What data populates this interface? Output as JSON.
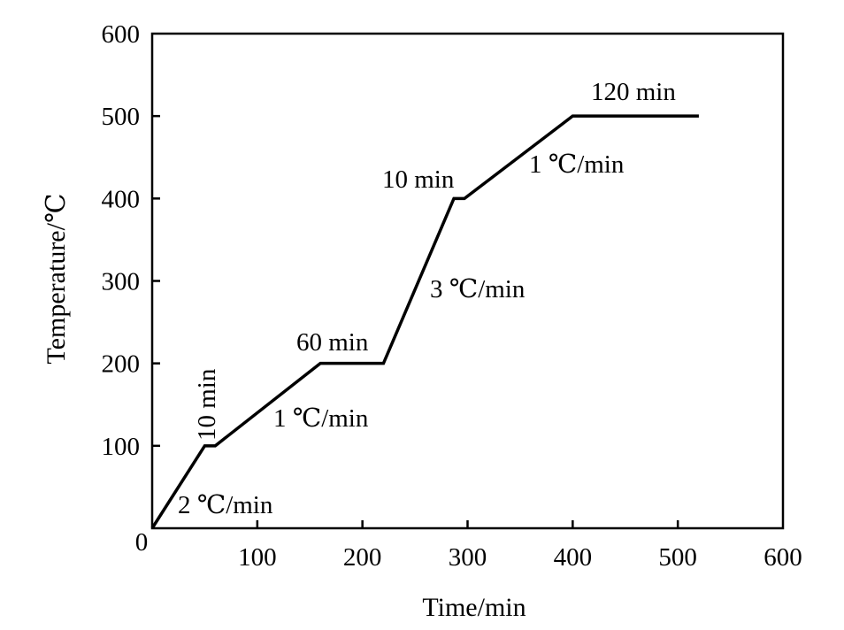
{
  "chart_data": {
    "type": "line",
    "xlabel": "Time/min",
    "ylabel": "Temperature/℃",
    "xlim": [
      0,
      600
    ],
    "ylim": [
      0,
      600
    ],
    "x_ticks": [
      0,
      100,
      200,
      300,
      400,
      500,
      600
    ],
    "y_ticks": [
      100,
      200,
      300,
      400,
      500,
      600
    ],
    "x_tick_labels": [
      "100",
      "200",
      "300",
      "400",
      "500",
      "600"
    ],
    "y_tick_labels": [
      "100",
      "200",
      "300",
      "400",
      "500",
      "600"
    ],
    "origin_label": "0",
    "grid": false,
    "legend": "none",
    "series": [
      {
        "x": [
          0,
          50,
          60,
          160,
          220,
          287,
          297,
          400,
          520
        ],
        "y": [
          0,
          100,
          100,
          200,
          200,
          400,
          400,
          500,
          500
        ]
      }
    ],
    "annotations": [
      {
        "text": "2 ℃/min"
      },
      {
        "text": "10 min"
      },
      {
        "text": "1 ℃/min"
      },
      {
        "text": "60 min"
      },
      {
        "text": "3 ℃/min"
      },
      {
        "text": "10 min"
      },
      {
        "text": "1 ℃/min"
      },
      {
        "text": "120 min"
      }
    ]
  }
}
